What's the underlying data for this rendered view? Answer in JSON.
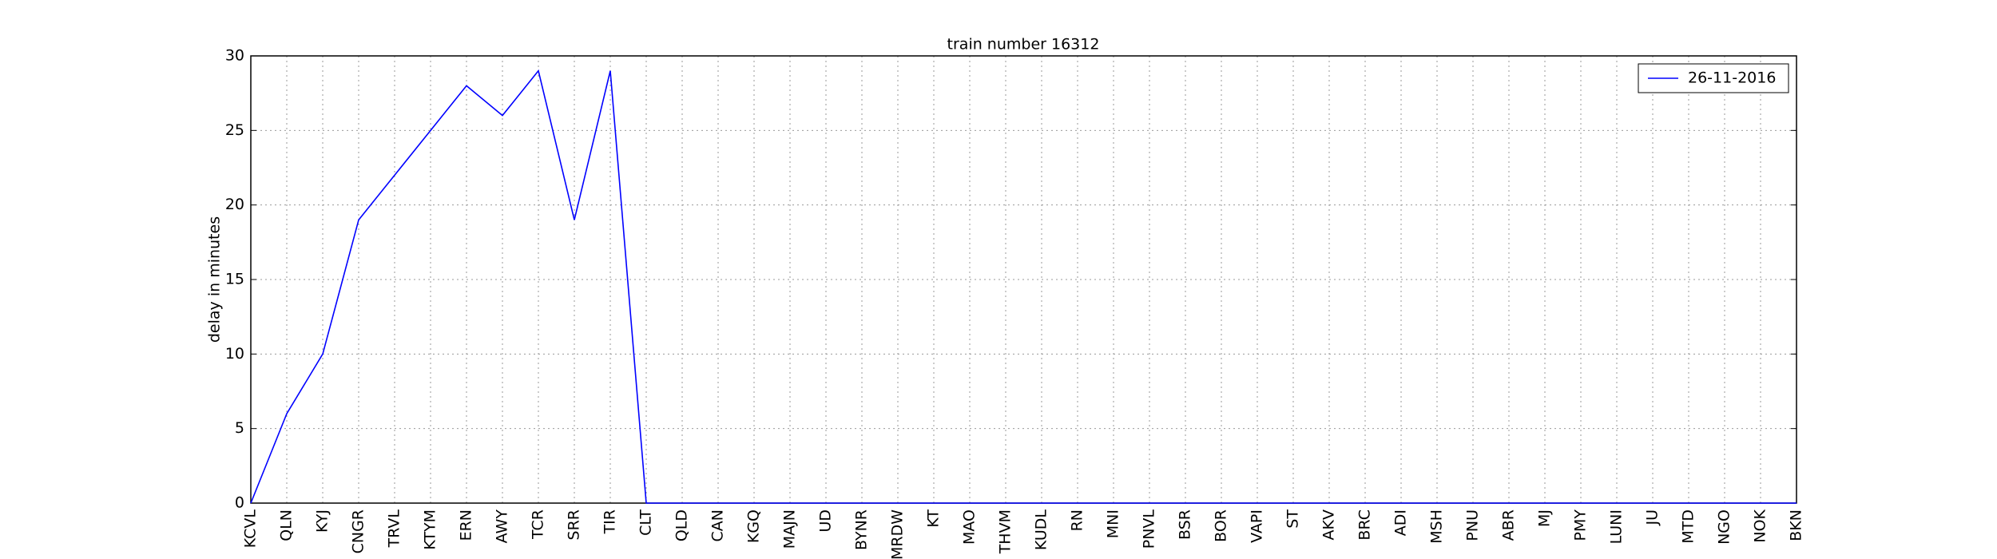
{
  "chart_data": {
    "type": "line",
    "title": "train number 16312",
    "y_label": "delay in minutes",
    "categories": [
      "KCVL",
      "QLN",
      "KYJ",
      "CNGR",
      "TRVL",
      "KTYM",
      "ERN",
      "AWY",
      "TCR",
      "SRR",
      "TIR",
      "CLT",
      "QLD",
      "CAN",
      "KGQ",
      "MAJN",
      "UD",
      "BYNR",
      "MRDW",
      "KT",
      "MAO",
      "THVM",
      "KUDL",
      "RN",
      "MNI",
      "PNVL",
      "BSR",
      "BOR",
      "VAPI",
      "ST",
      "AKV",
      "BRC",
      "ADI",
      "MSH",
      "PNU",
      "ABR",
      "MJ",
      "PMY",
      "LUNI",
      "JU",
      "MTD",
      "NGO",
      "NOK",
      "BKN"
    ],
    "series": [
      {
        "name": "26-11-2016",
        "color": "#0000ff",
        "values": [
          0,
          6,
          10,
          19,
          22,
          25,
          28,
          26,
          29,
          19,
          29,
          0,
          0,
          0,
          0,
          0,
          0,
          0,
          0,
          0,
          0,
          0,
          0,
          0,
          0,
          0,
          0,
          0,
          0,
          0,
          0,
          0,
          0,
          0,
          0,
          0,
          0,
          0,
          0,
          0,
          0,
          0,
          0,
          0
        ]
      }
    ],
    "ylim": [
      0,
      30
    ],
    "yticks": [
      0,
      5,
      10,
      15,
      20,
      25,
      30
    ],
    "grid": true,
    "legend": "upper right"
  }
}
